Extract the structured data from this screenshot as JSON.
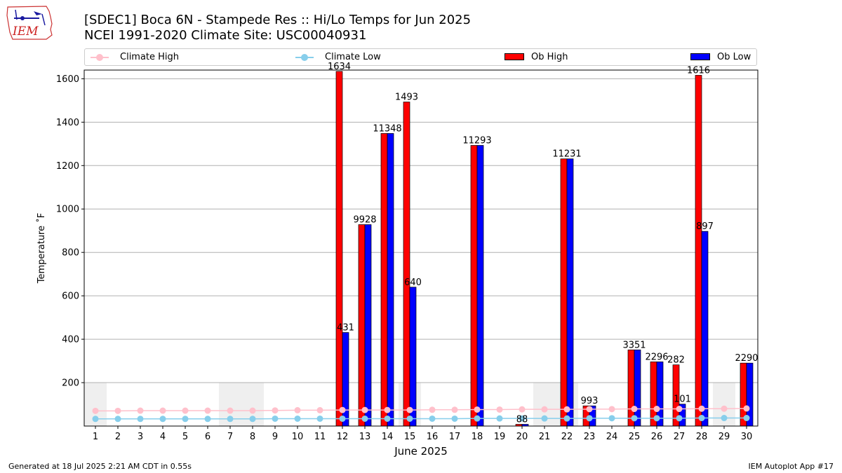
{
  "header": {
    "logo_text": "IEM",
    "title_line1": "[SDEC1] Boca 6N - Stampede Res :: Hi/Lo Temps for Jun 2025",
    "title_line2": "NCEI 1991-2020 Climate Site: USC00040931"
  },
  "footer": {
    "left": "Generated at 18 Jul 2025 2:21 AM CDT in 0.55s",
    "right": "IEM Autoplot App #17"
  },
  "colors": {
    "ob_high": "#ff0000",
    "ob_low": "#0000ff",
    "climate_high": "#ffc0cb",
    "climate_low": "#87ceeb",
    "missing_shade": "#efefef",
    "grid": "#b0b0b0"
  },
  "chart_data": {
    "type": "bar",
    "xlabel": "June 2025",
    "ylabel": "Temperature ˚F",
    "ylim": [
      0,
      1640
    ],
    "yticks": [
      200,
      400,
      600,
      800,
      1000,
      1200,
      1400,
      1600
    ],
    "grid": "horizontal",
    "legend_position": "top",
    "categories": [
      "1",
      "2",
      "3",
      "4",
      "5",
      "6",
      "7",
      "8",
      "9",
      "10",
      "11",
      "12",
      "13",
      "14",
      "15",
      "16",
      "17",
      "18",
      "19",
      "20",
      "21",
      "22",
      "23",
      "24",
      "25",
      "26",
      "27",
      "28",
      "29",
      "30"
    ],
    "series": [
      {
        "name": "Climate High",
        "kind": "line",
        "values": [
          70,
          70,
          71,
          71,
          71,
          71,
          71,
          71,
          72,
          73,
          73,
          74,
          74,
          74,
          74,
          75,
          75,
          76,
          76,
          77,
          77,
          77,
          78,
          78,
          79,
          79,
          79,
          80,
          80,
          81
        ]
      },
      {
        "name": "Climate Low",
        "kind": "line",
        "values": [
          33,
          33,
          33,
          33,
          33,
          33,
          33,
          33,
          34,
          34,
          34,
          34,
          34,
          34,
          34,
          34,
          34,
          35,
          35,
          35,
          35,
          35,
          36,
          36,
          36,
          36,
          36,
          37,
          37,
          37
        ]
      },
      {
        "name": "Ob High",
        "kind": "bar",
        "values": [
          null,
          null,
          null,
          null,
          null,
          null,
          null,
          null,
          null,
          null,
          null,
          1634,
          928,
          1348,
          1493,
          null,
          null,
          1293,
          null,
          8,
          null,
          1231,
          93,
          null,
          351,
          296,
          282,
          1616,
          null,
          290
        ]
      },
      {
        "name": "Ob Low",
        "kind": "bar",
        "values": [
          null,
          null,
          null,
          null,
          null,
          null,
          null,
          null,
          null,
          null,
          null,
          431,
          928,
          1348,
          640,
          null,
          null,
          1293,
          null,
          8,
          null,
          1231,
          93,
          null,
          351,
          296,
          101,
          897,
          null,
          290
        ]
      }
    ],
    "bar_labels": [
      {
        "day": 12,
        "text": "1634",
        "series": "Ob High"
      },
      {
        "day": 12,
        "text": "431",
        "series": "Ob Low"
      },
      {
        "day": 13,
        "text": "9928",
        "series": "Both"
      },
      {
        "day": 14,
        "text": "11348",
        "series": "Both"
      },
      {
        "day": 15,
        "text": "1493",
        "series": "Ob High"
      },
      {
        "day": 15,
        "text": "640",
        "series": "Ob Low"
      },
      {
        "day": 18,
        "text": "11293",
        "series": "Both"
      },
      {
        "day": 20,
        "text": "88",
        "series": "Both"
      },
      {
        "day": 22,
        "text": "11231",
        "series": "Both"
      },
      {
        "day": 23,
        "text": "993",
        "series": "Both"
      },
      {
        "day": 25,
        "text": "3351",
        "series": "Both"
      },
      {
        "day": 26,
        "text": "2296",
        "series": "Both"
      },
      {
        "day": 27,
        "text": "282",
        "series": "Ob High"
      },
      {
        "day": 27,
        "text": "101",
        "series": "Ob Low"
      },
      {
        "day": 28,
        "text": "1616",
        "series": "Ob High"
      },
      {
        "day": 28,
        "text": "897",
        "series": "Ob Low"
      },
      {
        "day": 30,
        "text": "2290",
        "series": "Both"
      }
    ],
    "missing_day_ranges": [
      [
        1,
        1
      ],
      [
        7,
        8
      ],
      [
        15,
        15
      ],
      [
        21,
        22
      ],
      [
        29,
        29
      ]
    ],
    "missing_shade_value": 200
  }
}
